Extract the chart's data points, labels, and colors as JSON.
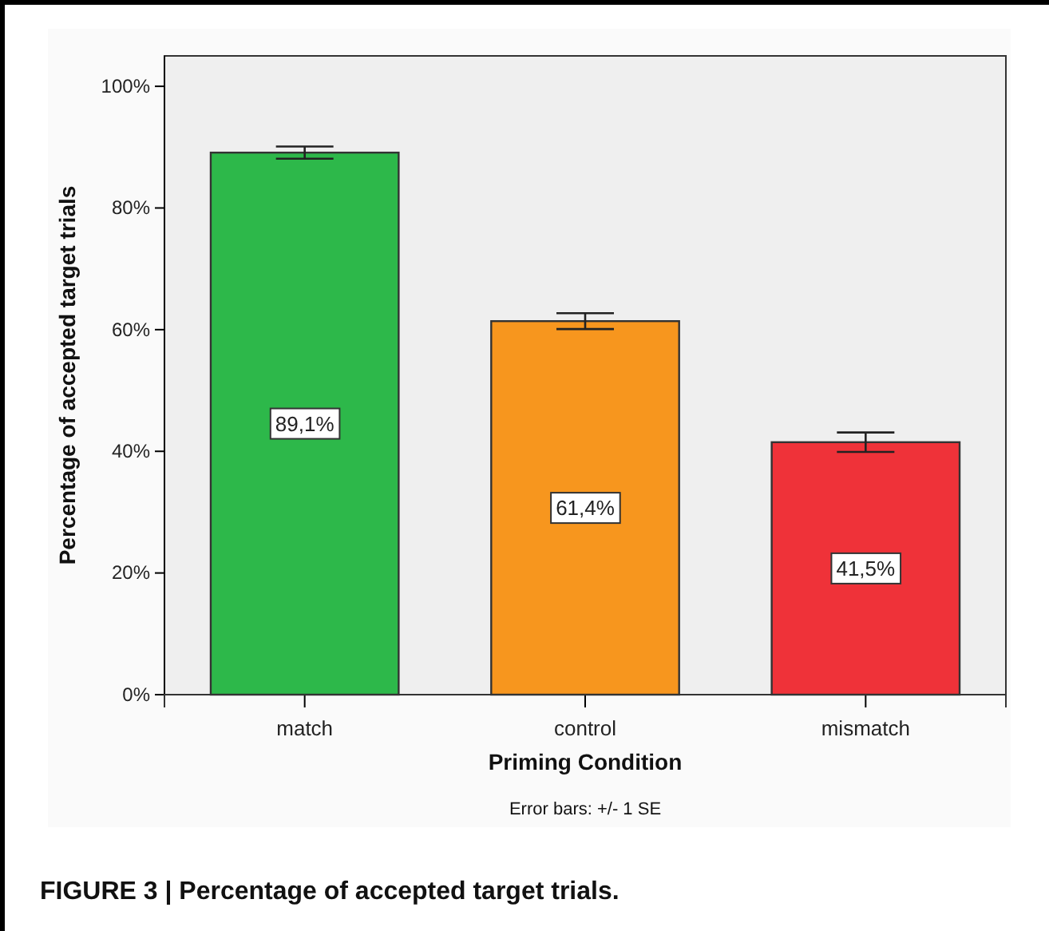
{
  "chart_data": {
    "type": "bar",
    "xlabel": "Priming Condition",
    "ylabel": "Percentage of accepted target trials",
    "categories": [
      "match",
      "control",
      "mismatch"
    ],
    "values": [
      89.1,
      61.4,
      41.5
    ],
    "colors": [
      "#2db84a",
      "#f7961e",
      "#ef3239"
    ],
    "errors": [
      1.0,
      1.3,
      1.6
    ],
    "value_labels": [
      "89,1%",
      "61,4%",
      "41,5%"
    ],
    "ylim": [
      0,
      105
    ],
    "yticks": [
      {
        "value": 0,
        "label": "0%"
      },
      {
        "value": 20,
        "label": "20%"
      },
      {
        "value": 40,
        "label": "40%"
      },
      {
        "value": 60,
        "label": "60%"
      },
      {
        "value": 80,
        "label": "80%"
      },
      {
        "value": 100,
        "label": "100%"
      }
    ],
    "grid": false,
    "annotations": [
      "Error bars: +/- 1 SE",
      "FIGURE 3 | Percentage of accepted target trials."
    ]
  }
}
